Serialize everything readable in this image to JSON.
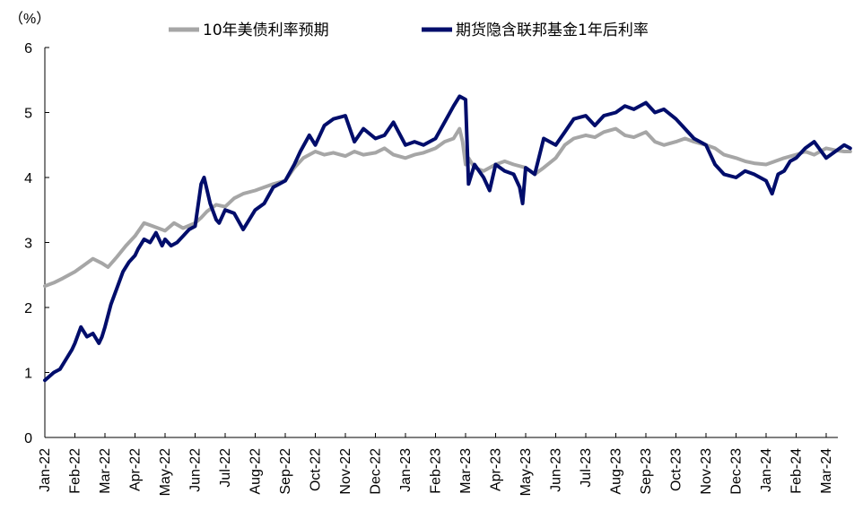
{
  "chart_data": {
    "type": "line",
    "ylabel": "（%）",
    "ylim": [
      0,
      6
    ],
    "yticks": [
      "0",
      "1",
      "2",
      "3",
      "4",
      "5",
      "6"
    ],
    "xlim": [
      0,
      26.8
    ],
    "xticks": [
      "Jan-22",
      "Feb-22",
      "Mar-22",
      "Apr-22",
      "May-22",
      "Jun-22",
      "Jul-22",
      "Aug-22",
      "Sep-22",
      "Oct-22",
      "Nov-22",
      "Dec-22",
      "Jan-23",
      "Feb-23",
      "Mar-23",
      "Apr-23",
      "May-23",
      "Jun-23",
      "Jul-23",
      "Aug-23",
      "Sep-23",
      "Oct-23",
      "Nov-23",
      "Dec-23",
      "Jan-24",
      "Feb-24",
      "Mar-24"
    ],
    "grid": false,
    "legend_position": "top",
    "series": [
      {
        "name": "10年美债利率预期",
        "color": "#a6a6a6",
        "x": [
          0,
          0.3,
          0.6,
          1.0,
          1.3,
          1.6,
          1.9,
          2.1,
          2.4,
          2.7,
          3.0,
          3.3,
          3.6,
          4.0,
          4.3,
          4.6,
          5.0,
          5.2,
          5.4,
          5.7,
          6.0,
          6.3,
          6.6,
          7.0,
          7.3,
          7.6,
          8.0,
          8.3,
          8.6,
          9.0,
          9.3,
          9.6,
          10.0,
          10.3,
          10.6,
          11.0,
          11.3,
          11.6,
          12.0,
          12.3,
          12.6,
          13.0,
          13.3,
          13.6,
          13.8,
          13.9,
          14.0,
          14.1,
          14.3,
          14.6,
          15.0,
          15.3,
          15.6,
          16.0,
          16.3,
          16.6,
          17.0,
          17.3,
          17.6,
          18.0,
          18.3,
          18.6,
          19.0,
          19.3,
          19.6,
          20.0,
          20.3,
          20.6,
          21.0,
          21.3,
          21.6,
          22.0,
          22.3,
          22.6,
          23.0,
          23.3,
          23.6,
          24.0,
          24.3,
          24.6,
          25.0,
          25.3,
          25.6,
          26.0,
          26.3,
          26.6,
          26.8
        ],
        "y": [
          2.33,
          2.38,
          2.45,
          2.55,
          2.65,
          2.75,
          2.68,
          2.62,
          2.78,
          2.95,
          3.1,
          3.3,
          3.25,
          3.18,
          3.3,
          3.22,
          3.3,
          3.38,
          3.48,
          3.58,
          3.55,
          3.68,
          3.75,
          3.8,
          3.85,
          3.9,
          3.95,
          4.15,
          4.3,
          4.4,
          4.35,
          4.38,
          4.33,
          4.4,
          4.35,
          4.38,
          4.45,
          4.35,
          4.3,
          4.35,
          4.38,
          4.45,
          4.55,
          4.6,
          4.75,
          4.55,
          4.2,
          4.3,
          4.15,
          4.1,
          4.2,
          4.25,
          4.2,
          4.15,
          4.05,
          4.15,
          4.3,
          4.5,
          4.6,
          4.65,
          4.62,
          4.7,
          4.75,
          4.65,
          4.62,
          4.7,
          4.55,
          4.5,
          4.55,
          4.6,
          4.55,
          4.5,
          4.45,
          4.35,
          4.3,
          4.25,
          4.22,
          4.2,
          4.25,
          4.3,
          4.35,
          4.4,
          4.35,
          4.45,
          4.42,
          4.4,
          4.4
        ]
      },
      {
        "name": "期货隐含联邦基金1年后利率",
        "color": "#000d6b",
        "x": [
          0,
          0.3,
          0.5,
          0.7,
          0.9,
          1.0,
          1.2,
          1.4,
          1.6,
          1.8,
          1.9,
          2.0,
          2.2,
          2.4,
          2.6,
          2.8,
          3.0,
          3.1,
          3.3,
          3.5,
          3.7,
          3.9,
          4.0,
          4.2,
          4.4,
          4.6,
          4.8,
          5.0,
          5.2,
          5.3,
          5.5,
          5.7,
          5.8,
          6.0,
          6.3,
          6.6,
          7.0,
          7.3,
          7.6,
          8.0,
          8.3,
          8.5,
          8.8,
          9.0,
          9.3,
          9.6,
          10.0,
          10.3,
          10.6,
          11.0,
          11.3,
          11.6,
          12.0,
          12.3,
          12.6,
          13.0,
          13.3,
          13.6,
          13.8,
          14.0,
          14.1,
          14.3,
          14.6,
          14.8,
          15.0,
          15.3,
          15.6,
          15.8,
          15.9,
          16.0,
          16.3,
          16.6,
          17.0,
          17.3,
          17.6,
          18.0,
          18.3,
          18.6,
          19.0,
          19.3,
          19.6,
          20.0,
          20.3,
          20.6,
          21.0,
          21.3,
          21.6,
          22.0,
          22.3,
          22.6,
          23.0,
          23.3,
          23.6,
          24.0,
          24.2,
          24.4,
          24.6,
          24.8,
          25.0,
          25.3,
          25.6,
          26.0,
          26.3,
          26.6,
          26.8
        ],
        "y": [
          0.88,
          1.0,
          1.05,
          1.2,
          1.35,
          1.45,
          1.7,
          1.55,
          1.6,
          1.45,
          1.55,
          1.7,
          2.05,
          2.3,
          2.55,
          2.7,
          2.8,
          2.9,
          3.05,
          3.0,
          3.15,
          2.95,
          3.05,
          2.95,
          3.0,
          3.1,
          3.2,
          3.25,
          3.9,
          4.0,
          3.6,
          3.35,
          3.3,
          3.5,
          3.45,
          3.2,
          3.5,
          3.6,
          3.85,
          3.95,
          4.2,
          4.4,
          4.65,
          4.5,
          4.8,
          4.9,
          4.95,
          4.55,
          4.75,
          4.6,
          4.65,
          4.85,
          4.5,
          4.55,
          4.5,
          4.6,
          4.85,
          5.1,
          5.25,
          5.2,
          3.9,
          4.2,
          4.0,
          3.8,
          4.2,
          4.1,
          4.05,
          3.85,
          3.6,
          4.15,
          4.05,
          4.6,
          4.5,
          4.7,
          4.9,
          4.95,
          4.8,
          4.95,
          5.0,
          5.1,
          5.05,
          5.15,
          5.0,
          5.05,
          4.9,
          4.75,
          4.6,
          4.5,
          4.2,
          4.05,
          4.0,
          4.1,
          4.05,
          3.95,
          3.75,
          4.05,
          4.1,
          4.25,
          4.3,
          4.45,
          4.55,
          4.3,
          4.4,
          4.5,
          4.45
        ]
      }
    ]
  }
}
